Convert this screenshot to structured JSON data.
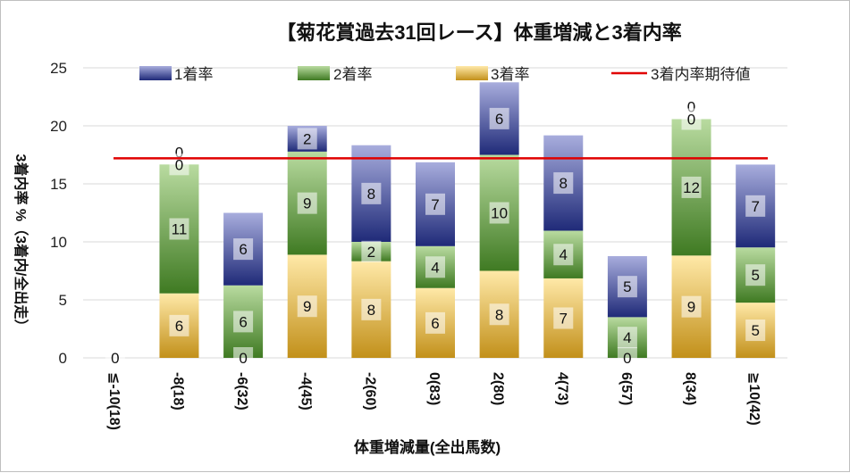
{
  "chart_data": {
    "type": "bar",
    "stacked": true,
    "title": "【菊花賞過去31回レース】体重増減と3着内率",
    "xlabel": "体重増減量(全出馬数)",
    "ylabel": "3着内率 %（3着内/全出走）",
    "ylim": [
      0,
      25
    ],
    "yticks": [
      0,
      5,
      10,
      15,
      20,
      25
    ],
    "grid": true,
    "legend_position": "top",
    "categories": [
      "≦-10(18)",
      "-8(18)",
      "-6(32)",
      "-4(45)",
      "-2(60)",
      "0(83)",
      "2(80)",
      "4(73)",
      "6(57)",
      "8(34)",
      "≧10(42)"
    ],
    "series": [
      {
        "name": "3着率",
        "color": "#e3b84a",
        "values": [
          0,
          5.56,
          0,
          8.89,
          8.33,
          6.02,
          7.5,
          6.85,
          0,
          8.82,
          4.76
        ],
        "labels": [
          0,
          6,
          0,
          9,
          8,
          6,
          8,
          7,
          0,
          9,
          5
        ]
      },
      {
        "name": "2着率",
        "color": "#5f9a3f",
        "values": [
          0,
          11.11,
          6.25,
          8.89,
          1.67,
          3.61,
          10.0,
          4.11,
          3.51,
          11.76,
          4.76
        ],
        "labels": [
          0,
          11,
          6,
          9,
          2,
          4,
          10,
          4,
          4,
          12,
          5
        ]
      },
      {
        "name": "1着率",
        "color": "#3b4a9a",
        "values": [
          0,
          0,
          6.25,
          2.22,
          8.33,
          7.23,
          6.25,
          8.22,
          5.26,
          0,
          7.14
        ],
        "labels": [
          0,
          0,
          6,
          2,
          8,
          7,
          6,
          8,
          5,
          0,
          7
        ]
      }
    ],
    "reference_line": {
      "name": "3着内率期待値",
      "value": 17.2,
      "color": "#e00000"
    }
  }
}
